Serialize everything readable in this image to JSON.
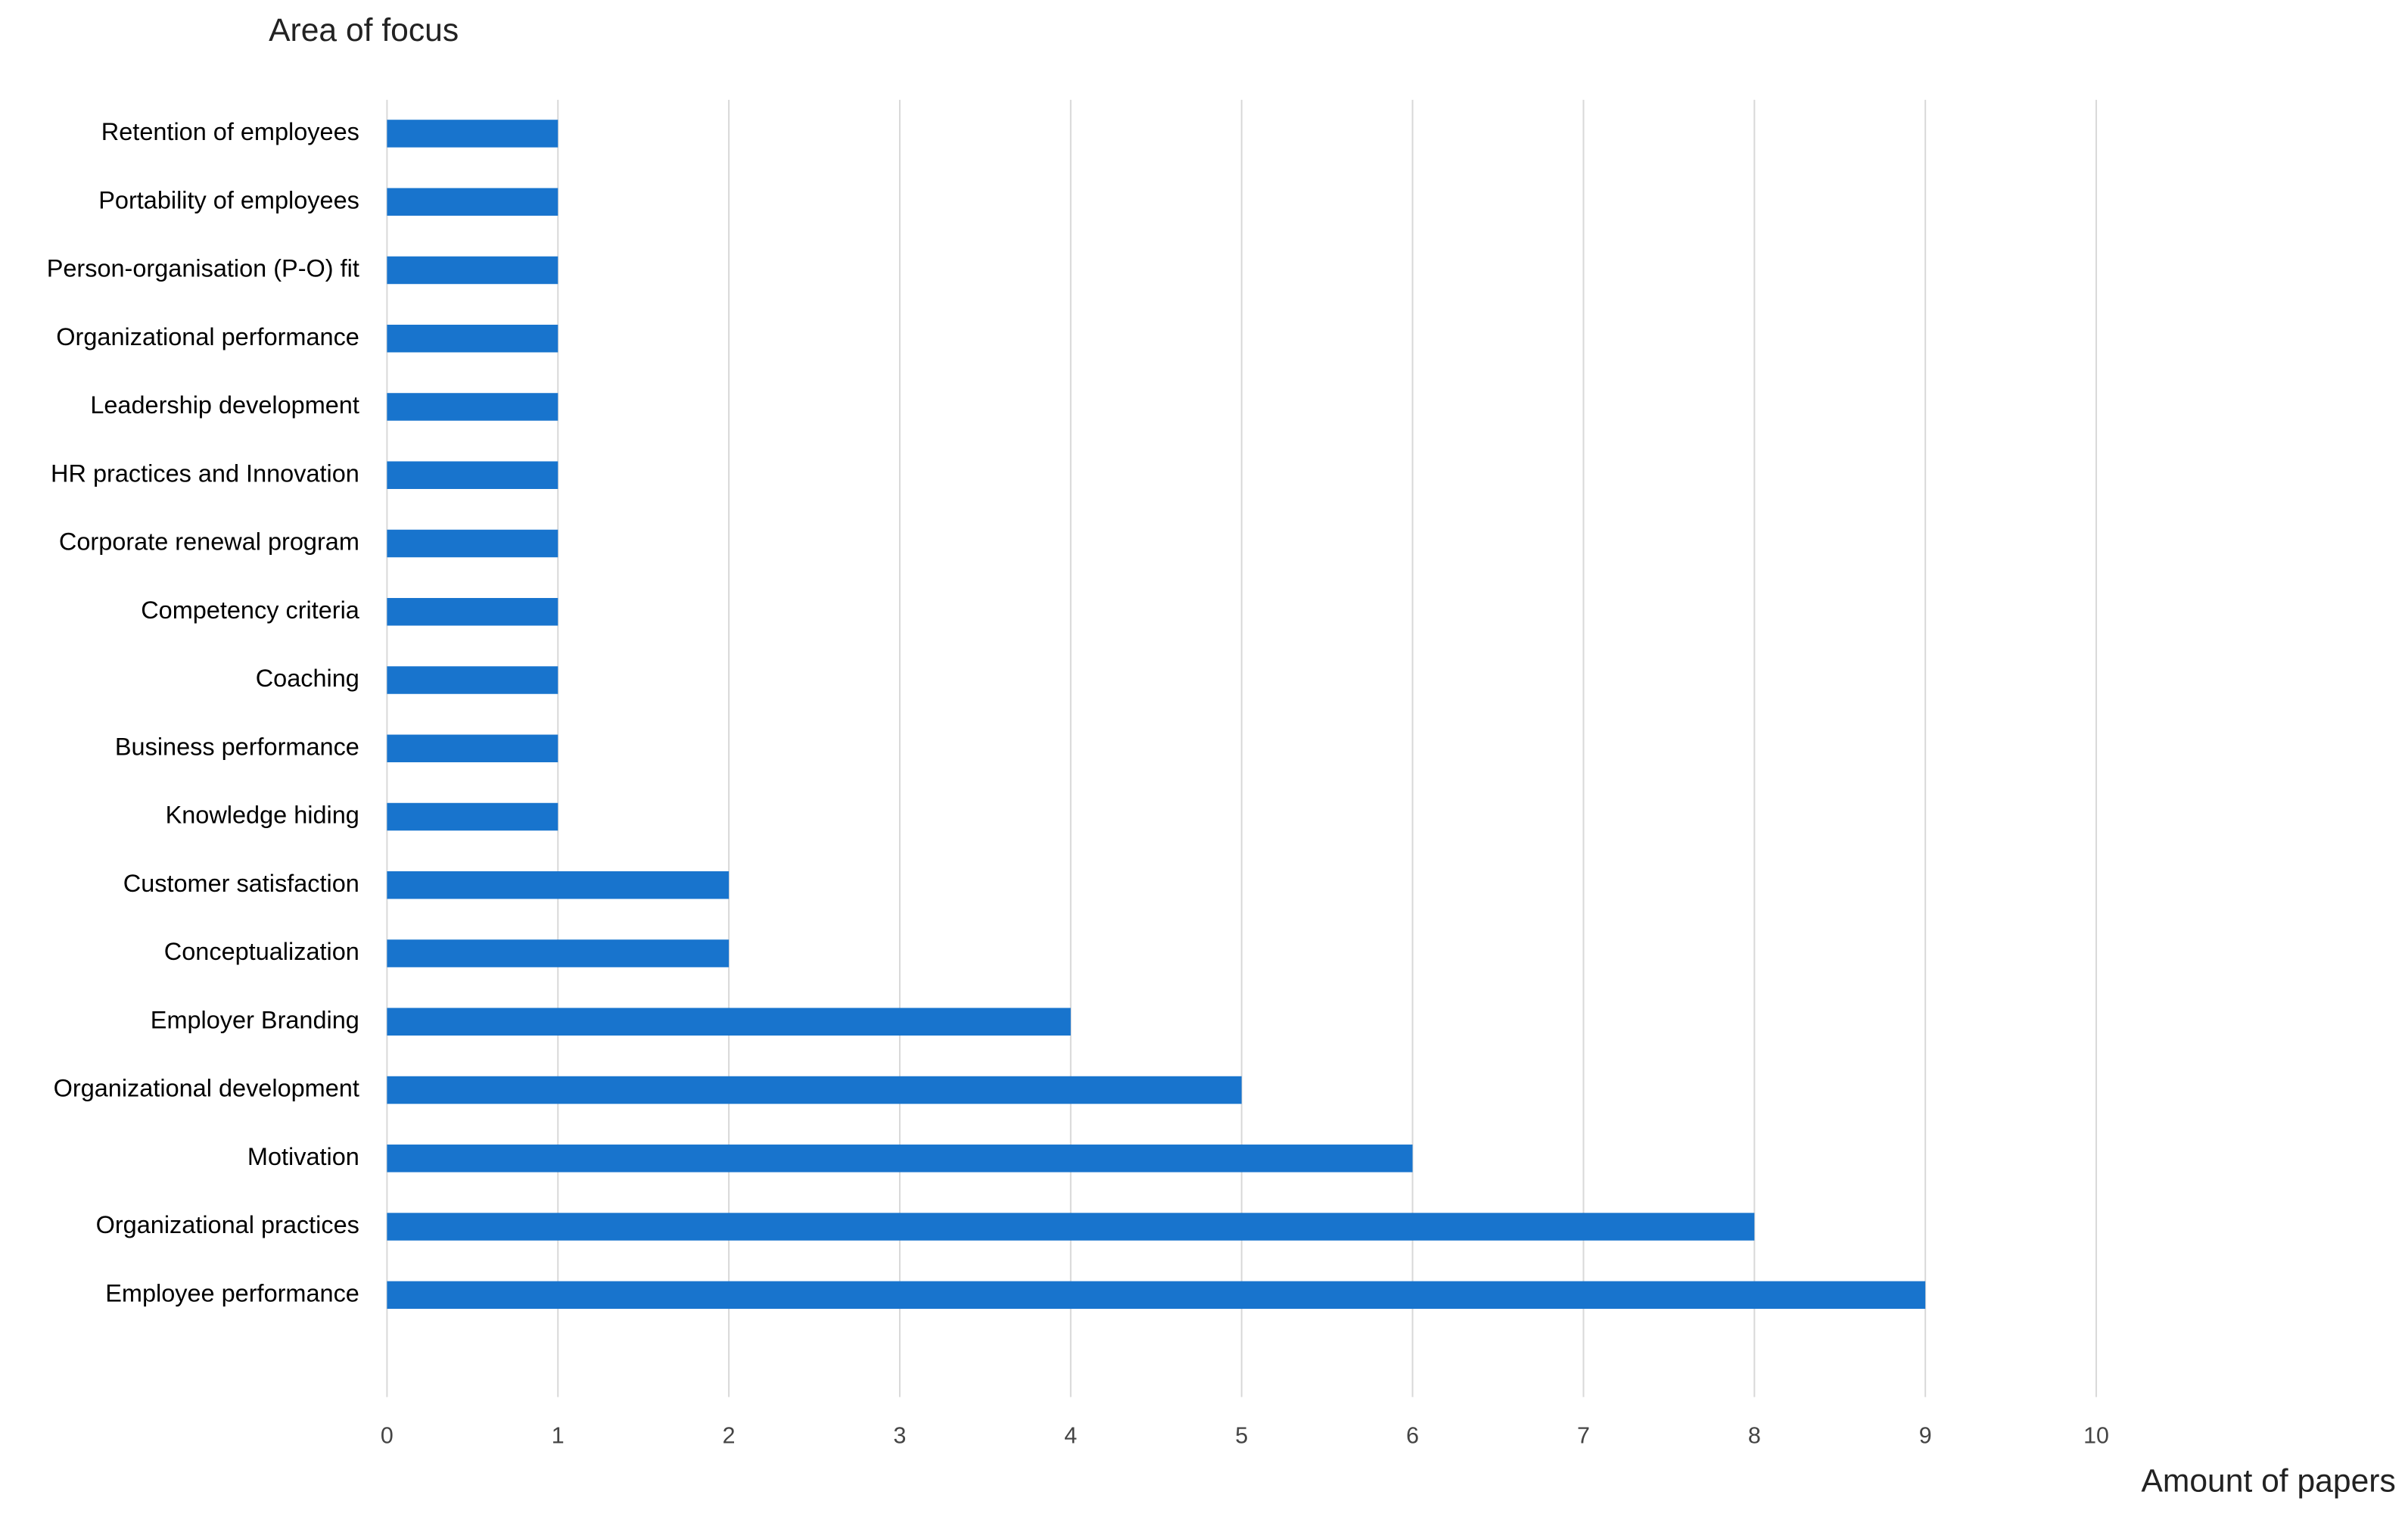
{
  "chart_data": {
    "type": "bar",
    "orientation": "horizontal",
    "y_label": "Area of focus",
    "x_label": "Amount of papers",
    "categories": [
      "Retention of employees",
      "Portability of employees",
      "Person-organisation (P-O) fit",
      "Organizational performance",
      "Leadership development",
      "HR practices and Innovation",
      "Corporate renewal program",
      "Competency criteria",
      "Coaching",
      "Business performance",
      "Knowledge hiding",
      "Customer satisfaction",
      "Conceptualization",
      "Employer Branding",
      "Organizational development",
      "Motivation",
      "Organizational practices",
      "Employee performance"
    ],
    "values": [
      1,
      1,
      1,
      1,
      1,
      1,
      1,
      1,
      1,
      1,
      1,
      2,
      2,
      4,
      5,
      6,
      8,
      9
    ],
    "color": "#1874cd",
    "xlim": [
      0,
      10
    ],
    "xticks": [
      0,
      1,
      2,
      3,
      4,
      5,
      6,
      7,
      8,
      9,
      10
    ],
    "grid": true
  }
}
